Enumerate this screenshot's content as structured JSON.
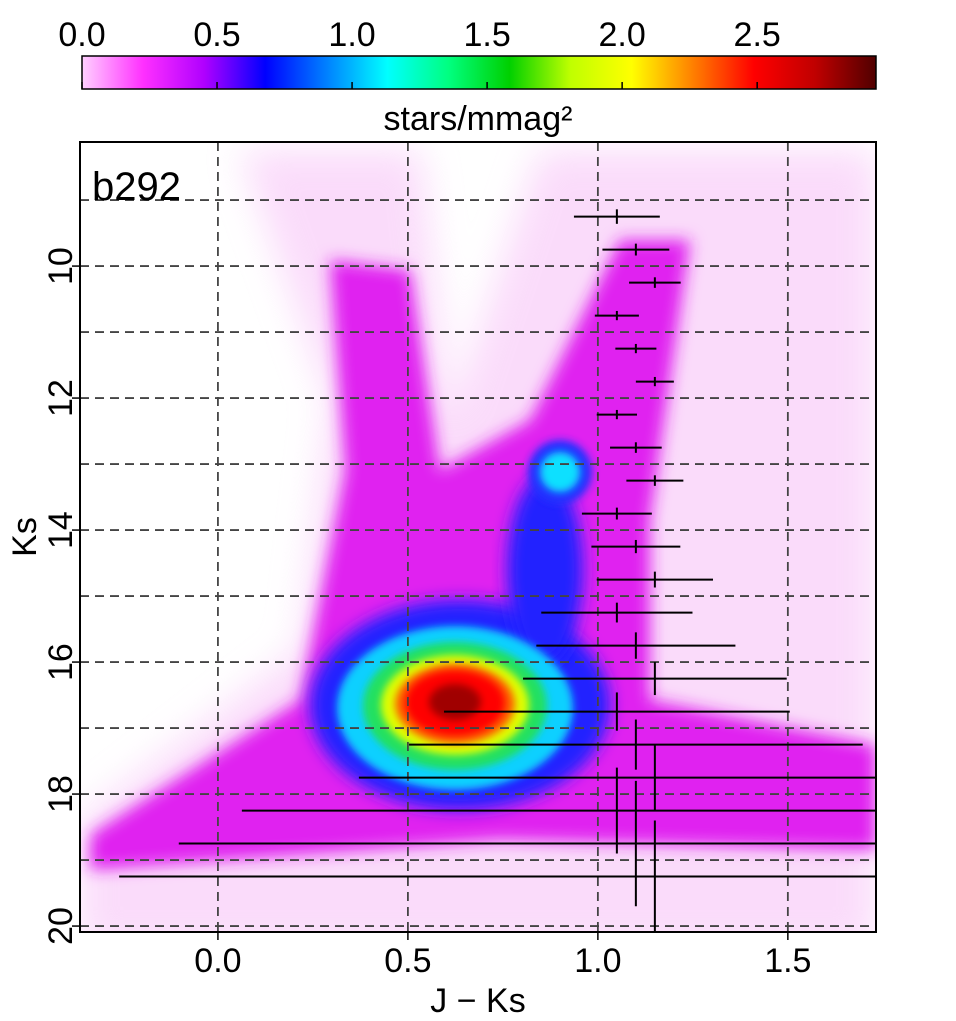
{
  "chart_data": {
    "type": "hess",
    "annotation": "b292",
    "xlabel": "J − Ks",
    "ylabel": "Ks",
    "xlim": [
      -0.363,
      1.732
    ],
    "ylim": [
      8.12,
      20.09
    ],
    "y_inverted": true,
    "xticks": [
      {
        "value": 0,
        "label": "0.0"
      },
      {
        "value": 0.5,
        "label": "0.5"
      },
      {
        "value": 1,
        "label": "1.0"
      },
      {
        "value": 1.5,
        "label": "1.5"
      }
    ],
    "yticks": [
      10,
      12,
      14,
      16,
      18,
      20
    ],
    "ygrid": [
      9,
      10,
      11,
      12,
      13,
      14,
      15,
      16,
      17,
      18,
      19,
      20
    ],
    "grid": true,
    "colorbar": {
      "label": "stars/mmag²",
      "lim": [
        0,
        2.94
      ],
      "ticks": [
        {
          "value": 0,
          "label": "0.0"
        },
        {
          "value": 0.5,
          "label": "0.5"
        },
        {
          "value": 1,
          "label": "1.0"
        },
        {
          "value": 1.5,
          "label": "1.5"
        },
        {
          "value": 2,
          "label": "2.0"
        },
        {
          "value": 2.5,
          "label": "2.5"
        }
      ],
      "colors": [
        "#ffd0ff",
        "#ff30ff",
        "#b000ff",
        "#0000ff",
        "#0080ff",
        "#00ffff",
        "#00ff80",
        "#00d000",
        "#c0ff00",
        "#ffff00",
        "#ff8000",
        "#ff0000",
        "#c00000",
        "#500000"
      ]
    },
    "errorbars": {
      "color": "#000000",
      "x": [
        1.05,
        1.1,
        1.15,
        1.05,
        1.1,
        1.15,
        1.05,
        1.1,
        1.15,
        1.05,
        1.1,
        1.15,
        1.05,
        1.1,
        1.15,
        1.05,
        1.1,
        1.15,
        1.05,
        1.1,
        1.15
      ],
      "y": [
        9.25,
        9.75,
        10.25,
        10.75,
        11.25,
        11.75,
        12.25,
        12.75,
        13.25,
        13.75,
        14.25,
        14.75,
        15.25,
        15.75,
        16.25,
        16.75,
        17.25,
        17.75,
        18.25,
        18.75,
        19.25
      ],
      "xerr": [
        0.113,
        0.088,
        0.068,
        0.058,
        0.054,
        0.05,
        0.053,
        0.068,
        0.075,
        0.092,
        0.117,
        0.153,
        0.199,
        0.262,
        0.347,
        0.455,
        0.597,
        0.779,
        0.987,
        1.203,
        1.41
      ],
      "yerr": [
        0.11,
        0.09,
        0.08,
        0.07,
        0.07,
        0.07,
        0.07,
        0.08,
        0.08,
        0.09,
        0.1,
        0.12,
        0.15,
        0.2,
        0.25,
        0.29,
        0.38,
        0.5,
        0.65,
        0.95,
        0.85
      ]
    }
  }
}
